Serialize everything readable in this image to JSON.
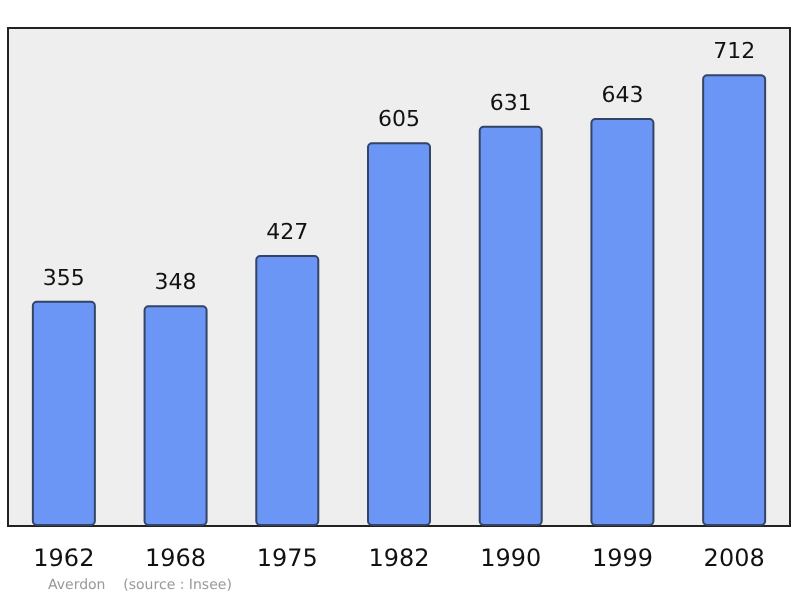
{
  "chart_data": {
    "type": "bar",
    "categories": [
      "1962",
      "1968",
      "1975",
      "1982",
      "1990",
      "1999",
      "2008"
    ],
    "values": [
      355,
      348,
      427,
      605,
      631,
      643,
      712
    ],
    "color": "#6b96f5",
    "ylim": [
      0,
      785
    ],
    "data_labels": true,
    "tick_labels": "x",
    "grid": false,
    "annotations": [
      "Averdon    (source : Insee)"
    ]
  }
}
